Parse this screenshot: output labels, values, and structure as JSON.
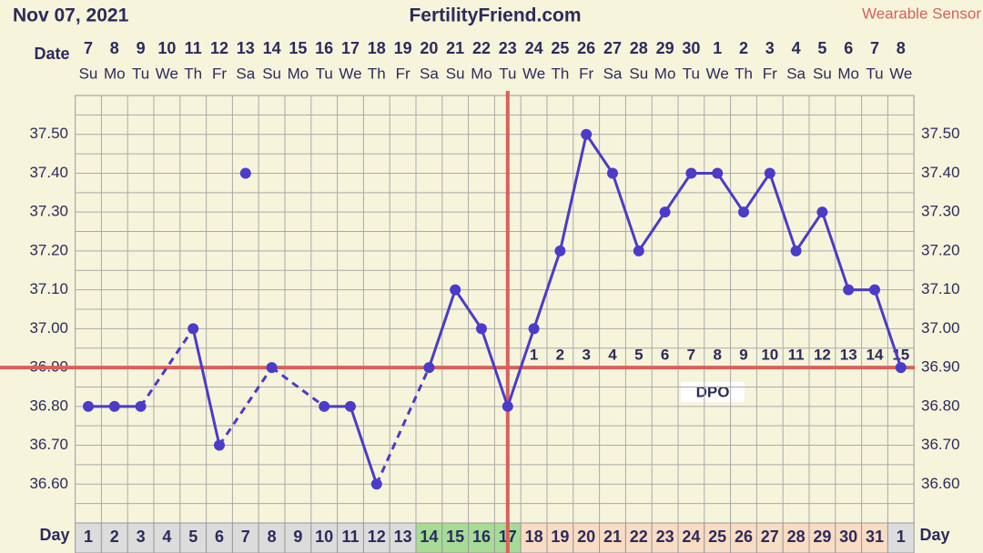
{
  "header": {
    "date": "Nov 07, 2021",
    "site": "FertilityFriend.com",
    "source": "Wearable Sensor",
    "date_label": "Date",
    "day_label": "Day",
    "dpo_label": "DPO"
  },
  "chart_data": {
    "type": "line",
    "color": "#4a3cc8",
    "dates": [
      "7",
      "8",
      "9",
      "10",
      "11",
      "12",
      "13",
      "14",
      "15",
      "16",
      "17",
      "18",
      "19",
      "20",
      "21",
      "22",
      "23",
      "24",
      "25",
      "26",
      "27",
      "28",
      "29",
      "30",
      "1",
      "2",
      "3",
      "4",
      "5",
      "6",
      "7",
      "8"
    ],
    "weekdays": [
      "Su",
      "Mo",
      "Tu",
      "We",
      "Th",
      "Fr",
      "Sa",
      "Su",
      "Mo",
      "Tu",
      "We",
      "Th",
      "Fr",
      "Sa",
      "Su",
      "Mo",
      "Tu",
      "We",
      "Th",
      "Fr",
      "Sa",
      "Su",
      "Mo",
      "Tu",
      "We",
      "Th",
      "Fr",
      "Sa",
      "Su",
      "Mo",
      "Tu",
      "We"
    ],
    "categories": [
      1,
      2,
      3,
      4,
      5,
      6,
      7,
      8,
      9,
      10,
      11,
      12,
      13,
      14,
      15,
      16,
      17,
      18,
      19,
      20,
      21,
      22,
      23,
      24,
      25,
      26,
      27,
      28,
      29,
      30,
      31,
      1
    ],
    "day_fill": [
      "#dcdcdc",
      "#dcdcdc",
      "#dcdcdc",
      "#dcdcdc",
      "#dcdcdc",
      "#dcdcdc",
      "#dcdcdc",
      "#dcdcdc",
      "#dcdcdc",
      "#dcdcdc",
      "#dcdcdc",
      "#dcdcdc",
      "#dcdcdc",
      "#a6dc96",
      "#a6dc96",
      "#a6dc96",
      "#a6dc96",
      "#f9dcc4",
      "#f9dcc4",
      "#f9dcc4",
      "#f9dcc4",
      "#f9dcc4",
      "#f9dcc4",
      "#f9dcc4",
      "#f9dcc4",
      "#f9dcc4",
      "#f9dcc4",
      "#f9dcc4",
      "#f9dcc4",
      "#f9dcc4",
      "#f9dcc4",
      "#dcdcdc"
    ],
    "values": [
      36.8,
      36.8,
      36.8,
      null,
      37.0,
      36.7,
      null,
      36.9,
      null,
      36.8,
      36.8,
      36.6,
      null,
      36.9,
      37.1,
      37.0,
      36.8,
      37.0,
      37.2,
      37.5,
      37.4,
      37.2,
      37.3,
      37.4,
      37.4,
      37.3,
      37.4,
      37.2,
      37.3,
      37.1,
      37.1,
      36.9
    ],
    "excluded_values": [
      null,
      null,
      null,
      null,
      null,
      null,
      37.4,
      null,
      null,
      null,
      null,
      null,
      null,
      null,
      null,
      null,
      null,
      null,
      null,
      null,
      null,
      null,
      null,
      null,
      null,
      null,
      null,
      null,
      null,
      null,
      null,
      null
    ],
    "dpo": [
      null,
      null,
      null,
      null,
      null,
      null,
      null,
      null,
      null,
      null,
      null,
      null,
      null,
      null,
      null,
      null,
      null,
      1,
      2,
      3,
      4,
      5,
      6,
      7,
      8,
      9,
      10,
      11,
      12,
      13,
      14,
      15
    ],
    "coverline": 36.9,
    "ovulation_day": 17,
    "line_color": "#d9605a",
    "ylim": [
      36.5,
      37.6
    ],
    "yticks": [
      {
        "value": 36.6,
        "label": "36.60"
      },
      {
        "value": 36.7,
        "label": "36.70"
      },
      {
        "value": 36.8,
        "label": "36.80"
      },
      {
        "value": 36.9,
        "label": "36.90"
      },
      {
        "value": 37.0,
        "label": "37.00"
      },
      {
        "value": 37.1,
        "label": "37.10"
      },
      {
        "value": 37.2,
        "label": "37.20"
      },
      {
        "value": 37.3,
        "label": "37.30"
      },
      {
        "value": 37.4,
        "label": "37.40"
      },
      {
        "value": 37.5,
        "label": "37.50"
      }
    ],
    "minor_grid": [
      36.55,
      36.65,
      36.75,
      36.85,
      36.95,
      37.05,
      37.15,
      37.25,
      37.35,
      37.45,
      37.55
    ],
    "grid": true
  }
}
